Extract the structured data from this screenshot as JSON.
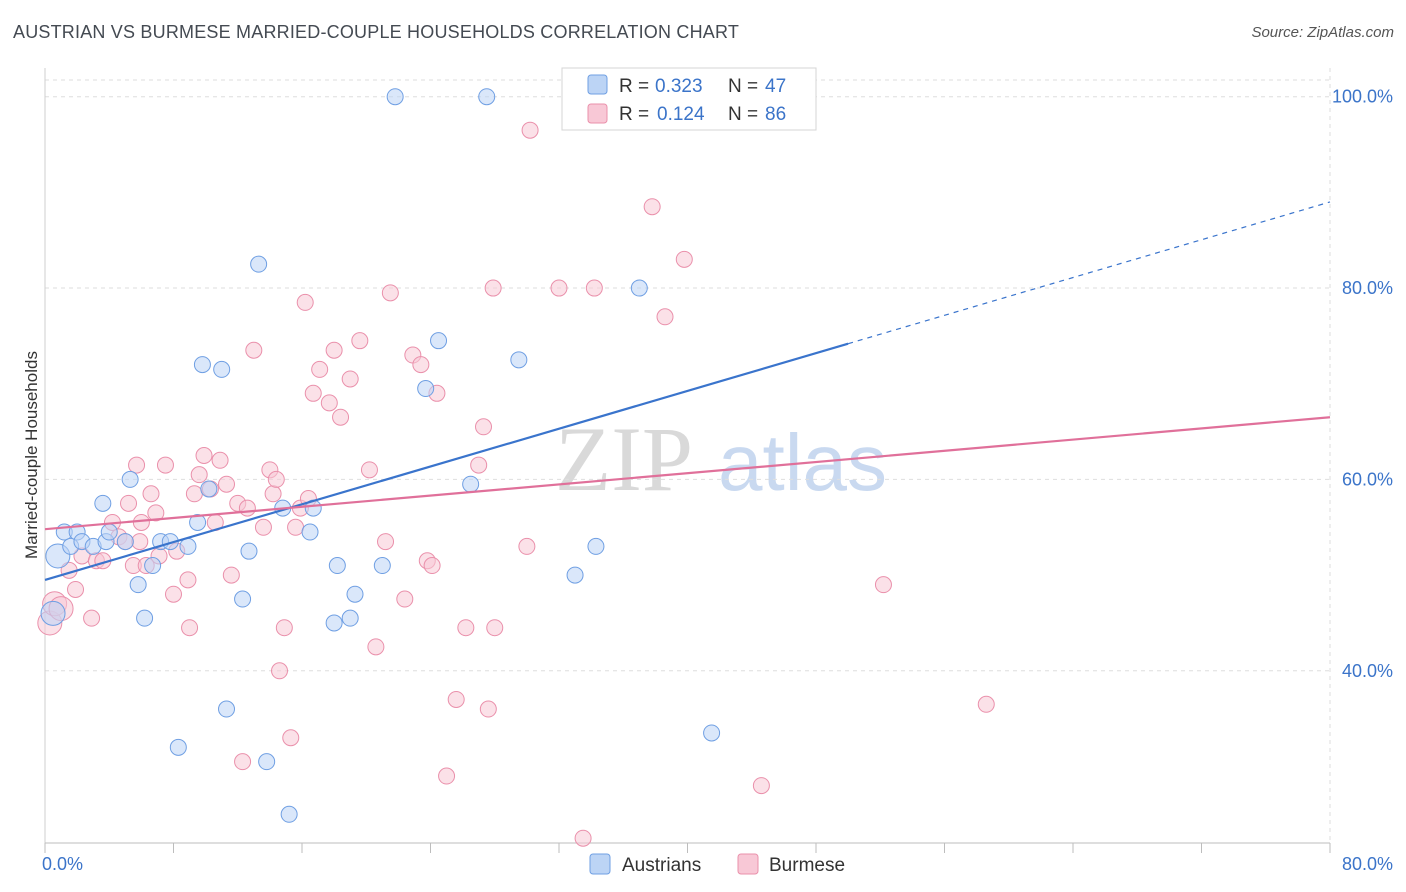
{
  "title": "AUSTRIAN VS BURMESE MARRIED-COUPLE HOUSEHOLDS CORRELATION CHART",
  "source": "Source: ZipAtlas.com",
  "watermark": {
    "part1": "ZIP",
    "part2": "atlas"
  },
  "colors": {
    "austrians_fill": "#bcd4f5",
    "austrians_stroke": "#6f9fe3",
    "austrians_line": "#3a74cc",
    "burmese_fill": "#f8c8d6",
    "burmese_stroke": "#ea90ab",
    "burmese_line": "#e0709a",
    "tick_label": "#3b74c9",
    "grid": "#dedede"
  },
  "legend_box": {
    "rows": [
      {
        "r_label": "R =",
        "r_value": "0.323",
        "n_label": "N =",
        "n_value": "47",
        "series": "Austrians"
      },
      {
        "r_label": "R =",
        "r_value": "0.124",
        "n_label": "N =",
        "n_value": "86",
        "series": "Burmese"
      }
    ]
  },
  "chart_data": {
    "type": "scatter",
    "title": "AUSTRIAN VS BURMESE MARRIED-COUPLE HOUSEHOLDS CORRELATION CHART",
    "xlabel": "",
    "ylabel": "Married-couple Households",
    "xlim": [
      0,
      80
    ],
    "ylim": [
      22,
      103
    ],
    "x_tick_labels": [
      {
        "value": 0,
        "label": "0.0%"
      },
      {
        "value": 80,
        "label": "80.0%"
      }
    ],
    "y_tick_labels": [
      {
        "value": 40,
        "label": "40.0%"
      },
      {
        "value": 60,
        "label": "60.0%"
      },
      {
        "value": 80,
        "label": "80.0%"
      },
      {
        "value": 100,
        "label": "100.0%"
      }
    ],
    "grid": true,
    "legend_position": "bottom-center",
    "series": [
      {
        "name": "Austrians",
        "points": [
          [
            0.5,
            46
          ],
          [
            0.8,
            52
          ],
          [
            1.2,
            54.5
          ],
          [
            1.6,
            53
          ],
          [
            2.0,
            54.5
          ],
          [
            2.3,
            53.5
          ],
          [
            3.0,
            53
          ],
          [
            3.8,
            53.5
          ],
          [
            3.6,
            57.5
          ],
          [
            4.0,
            54.5
          ],
          [
            5.0,
            53.5
          ],
          [
            5.3,
            60
          ],
          [
            5.8,
            49
          ],
          [
            6.2,
            45.5
          ],
          [
            6.7,
            51
          ],
          [
            7.2,
            53.5
          ],
          [
            7.8,
            53.5
          ],
          [
            8.3,
            32
          ],
          [
            8.9,
            53
          ],
          [
            9.5,
            55.5
          ],
          [
            10.2,
            59
          ],
          [
            9.8,
            72
          ],
          [
            11.0,
            71.5
          ],
          [
            11.3,
            36
          ],
          [
            12.3,
            47.5
          ],
          [
            12.7,
            52.5
          ],
          [
            13.3,
            82.5
          ],
          [
            13.8,
            30.5
          ],
          [
            14.8,
            57
          ],
          [
            15.2,
            25
          ],
          [
            16.5,
            54.5
          ],
          [
            16.7,
            57
          ],
          [
            18.2,
            51
          ],
          [
            18.0,
            45
          ],
          [
            19.3,
            48
          ],
          [
            19.0,
            45.5
          ],
          [
            21.0,
            51
          ],
          [
            21.8,
            100
          ],
          [
            23.7,
            69.5
          ],
          [
            24.5,
            74.5
          ],
          [
            26.5,
            59.5
          ],
          [
            27.5,
            100
          ],
          [
            29.5,
            72.5
          ],
          [
            33.0,
            50
          ],
          [
            34.3,
            53
          ],
          [
            37.0,
            80
          ],
          [
            41.5,
            33.5
          ]
        ],
        "trend": {
          "x": [
            0,
            80
          ],
          "y": [
            49.5,
            89
          ],
          "solid_until_x": 50
        }
      },
      {
        "name": "Burmese",
        "points": [
          [
            0.3,
            45
          ],
          [
            0.6,
            47
          ],
          [
            1.0,
            46.5
          ],
          [
            1.5,
            50.5
          ],
          [
            1.9,
            48.5
          ],
          [
            2.3,
            52
          ],
          [
            2.9,
            45.5
          ],
          [
            3.2,
            51.5
          ],
          [
            3.6,
            51.5
          ],
          [
            4.2,
            55.5
          ],
          [
            4.6,
            54
          ],
          [
            5.0,
            53.5
          ],
          [
            5.2,
            57.5
          ],
          [
            5.5,
            51
          ],
          [
            5.7,
            61.5
          ],
          [
            5.9,
            53.5
          ],
          [
            6.0,
            55.5
          ],
          [
            6.3,
            51
          ],
          [
            6.6,
            58.5
          ],
          [
            6.9,
            56.5
          ],
          [
            7.1,
            52
          ],
          [
            7.5,
            61.5
          ],
          [
            8.0,
            48
          ],
          [
            8.2,
            52.5
          ],
          [
            8.9,
            49.5
          ],
          [
            9.0,
            44.5
          ],
          [
            9.3,
            58.5
          ],
          [
            9.6,
            60.5
          ],
          [
            9.9,
            62.5
          ],
          [
            10.3,
            59
          ],
          [
            10.6,
            55.5
          ],
          [
            10.9,
            62
          ],
          [
            11.3,
            59.5
          ],
          [
            11.6,
            50
          ],
          [
            12.0,
            57.5
          ],
          [
            12.3,
            30.5
          ],
          [
            12.6,
            57
          ],
          [
            13.0,
            73.5
          ],
          [
            13.6,
            55
          ],
          [
            14.0,
            61
          ],
          [
            14.2,
            58.5
          ],
          [
            14.4,
            60
          ],
          [
            14.6,
            40
          ],
          [
            14.9,
            44.5
          ],
          [
            15.3,
            33
          ],
          [
            15.6,
            55
          ],
          [
            15.9,
            57
          ],
          [
            16.2,
            78.5
          ],
          [
            16.4,
            58
          ],
          [
            16.7,
            69
          ],
          [
            17.1,
            71.5
          ],
          [
            17.7,
            68
          ],
          [
            18.0,
            73.5
          ],
          [
            18.4,
            66.5
          ],
          [
            19.0,
            70.5
          ],
          [
            19.6,
            74.5
          ],
          [
            20.2,
            61
          ],
          [
            20.6,
            42.5
          ],
          [
            21.2,
            53.5
          ],
          [
            21.5,
            79.5
          ],
          [
            22.4,
            47.5
          ],
          [
            22.9,
            73
          ],
          [
            23.4,
            72
          ],
          [
            23.8,
            51.5
          ],
          [
            24.1,
            51
          ],
          [
            24.4,
            69
          ],
          [
            25.0,
            29
          ],
          [
            25.6,
            37
          ],
          [
            26.2,
            44.5
          ],
          [
            27.0,
            61.5
          ],
          [
            27.3,
            65.5
          ],
          [
            27.6,
            36
          ],
          [
            28.0,
            44.5
          ],
          [
            30.0,
            53
          ],
          [
            30.2,
            96.5
          ],
          [
            32.0,
            80
          ],
          [
            33.5,
            22.5
          ],
          [
            34.2,
            80
          ],
          [
            33.8,
            100
          ],
          [
            37.8,
            88.5
          ],
          [
            38.6,
            77
          ],
          [
            39.8,
            83
          ],
          [
            44.6,
            28
          ],
          [
            52.2,
            49
          ],
          [
            58.6,
            36.5
          ],
          [
            27.9,
            80
          ]
        ],
        "trend": {
          "x": [
            0,
            80
          ],
          "y": [
            54.8,
            66.5
          ]
        }
      }
    ]
  },
  "bottom_legend": {
    "items": [
      {
        "label": "Austrians",
        "series": "Austrians"
      },
      {
        "label": "Burmese",
        "series": "Burmese"
      }
    ]
  }
}
